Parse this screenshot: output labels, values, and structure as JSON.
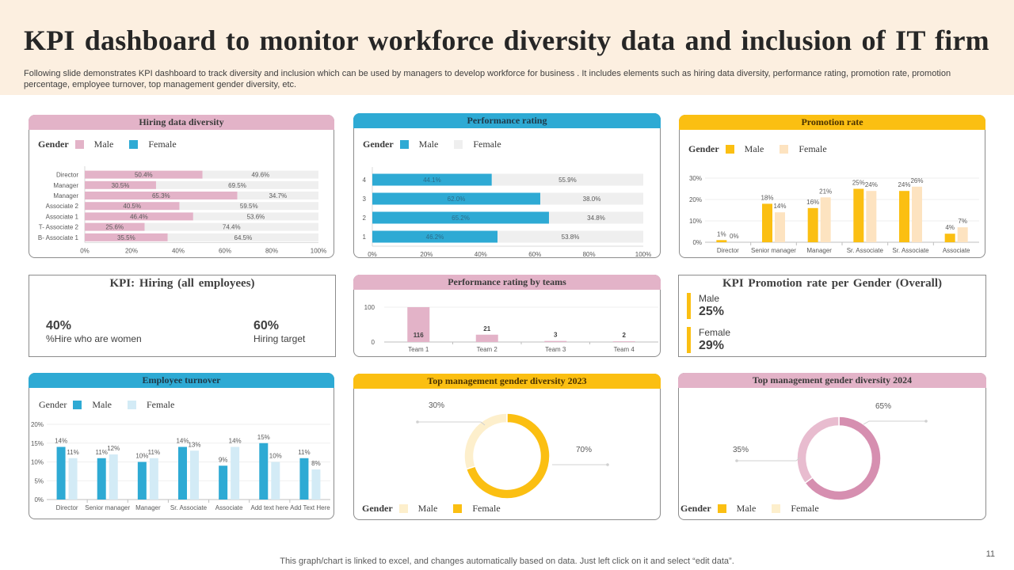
{
  "header": {
    "title": "KPI dashboard to monitor workforce diversity data and inclusion of IT firm",
    "subtitle": "Following slide demonstrates KPI dashboard to track diversity and inclusion which can be used by managers to develop workforce for business . It includes elements such as hiring data diversity, performance rating, promotion rate, promotion percentage, employee turnover, top management gender diversity, etc."
  },
  "footer": {
    "note": "This graph/chart is linked to excel, and changes automatically based on data. Just left click on it and select “edit data”.",
    "page_number": "11"
  },
  "colors": {
    "pink": "#e3b3c8",
    "pink_dark": "#d68fb0",
    "blue": "#2eaad4",
    "light_blue": "#d3ebf6",
    "yellow": "#fbbf12",
    "peach": "#fde3c0",
    "light_gray": "#efefef"
  },
  "panels": {
    "hiring": {
      "title": "Hiring data diversity",
      "legend": {
        "title": "Gender",
        "items": [
          "Male",
          "Female"
        ]
      }
    },
    "performance": {
      "title": "Performance  rating",
      "legend": {
        "title": "Gender",
        "items": [
          "Male",
          "Female"
        ]
      }
    },
    "promotion": {
      "title": "Promotion  rate",
      "legend": {
        "title": "Gender",
        "items": [
          "Male",
          "Female"
        ]
      }
    },
    "kpi_hiring": {
      "title": "KPI:  Hiring  (all  employees)",
      "women_value": "40%",
      "women_label": "%Hire who are women",
      "target_value": "60%",
      "target_label": "Hiring target"
    },
    "perf_teams": {
      "title": "Performance  rating  by  teams"
    },
    "kpi_promotion": {
      "title": "KPI  Promotion  rate per Gender (Overall)",
      "male_label": "Male",
      "male_value": "25%",
      "female_label": "Female",
      "female_value": "29%"
    },
    "turnover": {
      "title": "Employee   turnover",
      "legend": {
        "title": "Gender",
        "items": [
          "Male",
          "Female"
        ]
      }
    },
    "mgmt2023": {
      "title": "Top  management  gender  diversity  2023",
      "legend": {
        "title": "Gender",
        "items": [
          "Male",
          "Female"
        ]
      }
    },
    "mgmt2024": {
      "title": "Top  management  gender  diversity  2024",
      "legend": {
        "title": "Gender",
        "items": [
          "Male",
          "Female"
        ]
      }
    }
  },
  "chart_data": [
    {
      "id": "hiring",
      "type": "bar",
      "orientation": "horizontal-stacked-100",
      "title": "Hiring data diversity",
      "categories": [
        "Director",
        "Manager",
        "Manager",
        "Associate 2",
        "Associate 1",
        "T- Associate 2",
        "B- Associate 1"
      ],
      "series": [
        {
          "name": "Male",
          "values": [
            50.4,
            30.5,
            65.3,
            40.5,
            46.4,
            25.6,
            35.5
          ]
        },
        {
          "name": "Female",
          "values": [
            49.6,
            69.5,
            34.7,
            59.5,
            53.6,
            74.4,
            64.5
          ]
        }
      ],
      "xlim": [
        0,
        100
      ],
      "xticks": [
        "0%",
        "20%",
        "40%",
        "60%",
        "80%",
        "100%"
      ],
      "legend": "top-left"
    },
    {
      "id": "performance",
      "type": "bar",
      "orientation": "horizontal-stacked-100",
      "title": "Performance rating",
      "categories": [
        "4",
        "3",
        "2",
        "1"
      ],
      "series": [
        {
          "name": "Male",
          "values": [
            44.1,
            62.0,
            65.2,
            46.2
          ]
        },
        {
          "name": "Female",
          "values": [
            55.9,
            38.0,
            34.8,
            53.8
          ]
        }
      ],
      "xlim": [
        0,
        100
      ],
      "xticks": [
        "0%",
        "20%",
        "40%",
        "60%",
        "80%",
        "100%"
      ],
      "legend": "top-left"
    },
    {
      "id": "promotion",
      "type": "bar",
      "orientation": "vertical-grouped",
      "title": "Promotion rate",
      "categories": [
        "Director",
        "Senior manager",
        "Manager",
        "Sr. Associate",
        "Sr. Associate",
        "Associate"
      ],
      "series": [
        {
          "name": "Male",
          "values": [
            1,
            18,
            16,
            25,
            24,
            4
          ]
        },
        {
          "name": "Female",
          "values": [
            0,
            14,
            21,
            24,
            26,
            7
          ]
        }
      ],
      "ylim": [
        0,
        30
      ],
      "yticks": [
        "0%",
        "10%",
        "20%",
        "30%"
      ],
      "grid": true,
      "legend": "top-left"
    },
    {
      "id": "perf_teams",
      "type": "bar",
      "orientation": "vertical",
      "title": "Performance rating by teams",
      "categories": [
        "Team 1",
        "Team 2",
        "Team 3",
        "Team 4"
      ],
      "values": [
        116,
        21,
        3,
        2
      ],
      "ylim": [
        0,
        100
      ],
      "yticks": [
        "0",
        "100"
      ]
    },
    {
      "id": "turnover",
      "type": "bar",
      "orientation": "vertical-grouped",
      "title": "Employee turnover",
      "categories": [
        "Director",
        "Senior manager",
        "Manager",
        "Sr. Associate",
        "Associate",
        "Add text here",
        "Add Text Here"
      ],
      "series": [
        {
          "name": "Male",
          "values": [
            14,
            11,
            10,
            14,
            9,
            15,
            11
          ]
        },
        {
          "name": "Female",
          "values": [
            11,
            12,
            11,
            13,
            14,
            10,
            8
          ]
        }
      ],
      "ylim": [
        0,
        20
      ],
      "yticks": [
        "0%",
        "5%",
        "10%",
        "15%",
        "20%"
      ],
      "grid": true,
      "legend": "top-left"
    },
    {
      "id": "mgmt2023",
      "type": "pie",
      "donut": true,
      "title": "Top management gender diversity 2023",
      "labels": [
        "Male",
        "Female"
      ],
      "values": [
        30,
        70
      ],
      "value_labels": [
        "30%",
        "70%"
      ],
      "legend": "bottom-left"
    },
    {
      "id": "mgmt2024",
      "type": "pie",
      "donut": true,
      "title": "Top management gender diversity 2024",
      "labels": [
        "Female",
        "Male"
      ],
      "values": [
        65,
        35
      ],
      "value_labels": [
        "65%",
        "35%"
      ],
      "legend": "bottom-left"
    }
  ]
}
